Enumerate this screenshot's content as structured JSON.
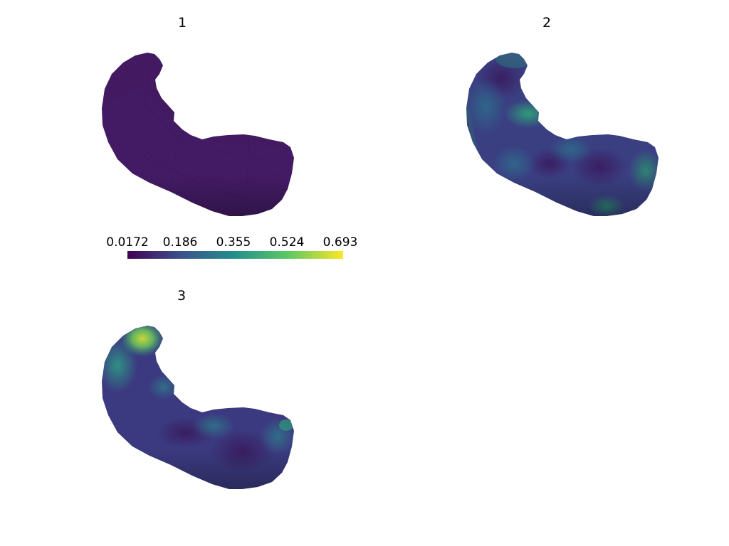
{
  "panels": [
    {
      "title": "1",
      "mean_value": 0.03
    },
    {
      "title": "2",
      "mean_value": 0.2
    },
    {
      "title": "3",
      "mean_value": 0.22
    }
  ],
  "colorbar": {
    "colormap": "viridis",
    "range": [
      0.0172,
      0.693
    ],
    "ticks": [
      "0.0172",
      "0.186",
      "0.355",
      "0.524",
      "0.693"
    ],
    "colors": [
      "#440154",
      "#3b528b",
      "#21918c",
      "#5ec962",
      "#fde725"
    ]
  }
}
